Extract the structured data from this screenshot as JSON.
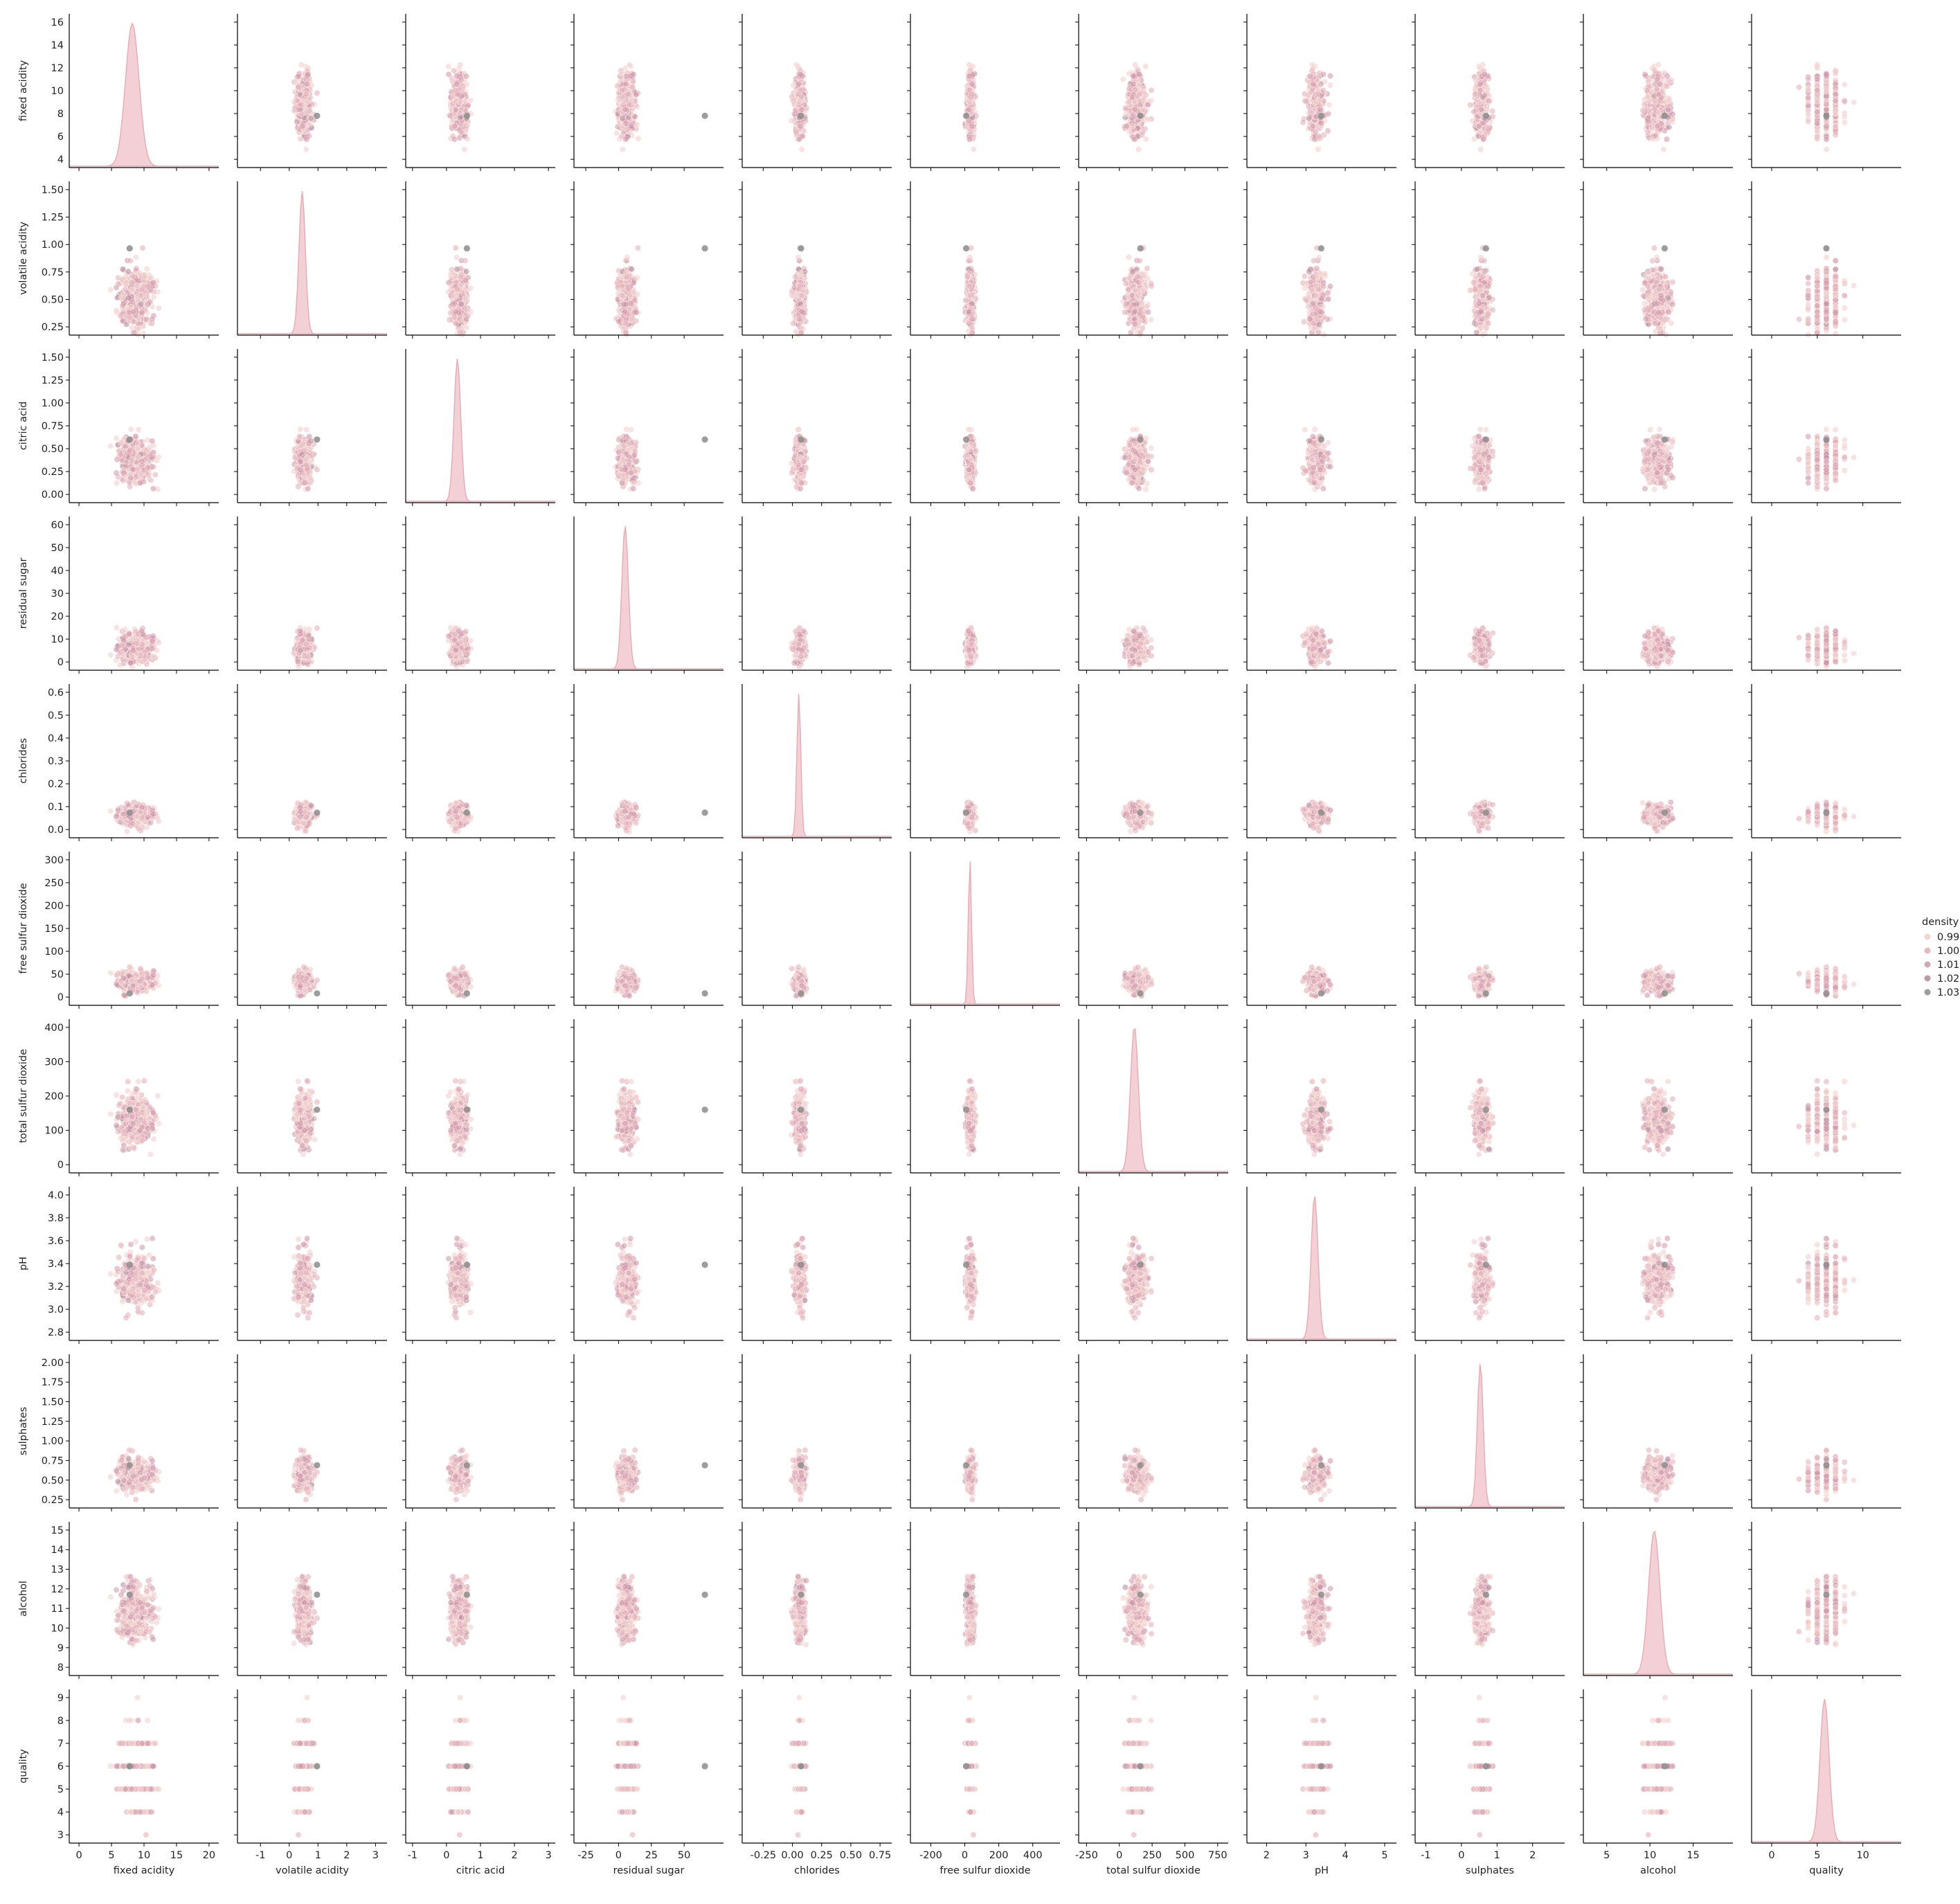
{
  "chart_data": {
    "type": "scatter",
    "subtype": "pairplot",
    "diagonal": "kde",
    "hue": "density",
    "variables": [
      {
        "name": "fixed acidity",
        "lim": [
          -1.5,
          21.5
        ],
        "ticks": [
          4,
          6,
          8,
          10,
          12,
          14,
          16
        ],
        "tick_labels": [
          "4",
          "6",
          "8",
          "10",
          "12",
          "14",
          "16"
        ],
        "xticks": [
          0,
          5,
          10,
          15,
          20
        ],
        "xtick_labels": [
          "0",
          "5",
          "10",
          "15",
          "20"
        ],
        "center": 8.2,
        "sd": 1.9
      },
      {
        "name": "volatile acidity",
        "lim": [
          -1.8,
          3.4
        ],
        "ticks": [
          0.25,
          0.5,
          0.75,
          1.0,
          1.25,
          1.5
        ],
        "tick_labels": [
          "0.25",
          "0.50",
          "0.75",
          "1.00",
          "1.25",
          "1.50"
        ],
        "xticks": [
          -1,
          0,
          1,
          2,
          3
        ],
        "xtick_labels": [
          "-1",
          "0",
          "1",
          "2",
          "3"
        ],
        "center": 0.45,
        "sd": 0.2
      },
      {
        "name": "citric acid",
        "lim": [
          -1.2,
          3.2
        ],
        "ticks": [
          0,
          0.25,
          0.5,
          0.75,
          1.0,
          1.25,
          1.5
        ],
        "tick_labels": [
          "0.00",
          "0.25",
          "0.50",
          "0.75",
          "1.00",
          "1.25",
          "1.50"
        ],
        "xticks": [
          -1,
          0,
          1,
          2,
          3
        ],
        "xtick_labels": [
          "-1",
          "0",
          "1",
          "2",
          "3"
        ],
        "center": 0.32,
        "sd": 0.18
      },
      {
        "name": "residual sugar",
        "lim": [
          -34,
          80
        ],
        "ticks": [
          0,
          10,
          20,
          30,
          40,
          50,
          60
        ],
        "tick_labels": [
          "0",
          "10",
          "20",
          "30",
          "40",
          "50",
          "60"
        ],
        "xticks": [
          -25,
          0,
          25,
          50
        ],
        "xtick_labels": [
          "-25",
          "0",
          "25",
          "50"
        ],
        "center": 5,
        "sd": 4.5
      },
      {
        "name": "chlorides",
        "lim": [
          -0.43,
          0.85
        ],
        "ticks": [
          0.0,
          0.1,
          0.2,
          0.3,
          0.4,
          0.5,
          0.6
        ],
        "tick_labels": [
          "0.0",
          "0.1",
          "0.2",
          "0.3",
          "0.4",
          "0.5",
          "0.6"
        ],
        "xticks": [
          -0.25,
          0,
          0.25,
          0.5,
          0.75
        ],
        "xtick_labels": [
          "-0.25",
          "0.00",
          "0.25",
          "0.50",
          "0.75"
        ],
        "center": 0.055,
        "sd": 0.03
      },
      {
        "name": "free sulfur dioxide",
        "lim": [
          -320,
          560
        ],
        "ticks": [
          0,
          50,
          100,
          150,
          200,
          250,
          300
        ],
        "tick_labels": [
          "0",
          "50",
          "100",
          "150",
          "200",
          "250",
          "300"
        ],
        "xticks": [
          -200,
          0,
          200,
          400
        ],
        "xtick_labels": [
          "-200",
          "0",
          "200",
          "400"
        ],
        "center": 30,
        "sd": 17
      },
      {
        "name": "total sulfur dioxide",
        "lim": [
          -310,
          830
        ],
        "ticks": [
          0,
          100,
          200,
          300,
          400
        ],
        "tick_labels": [
          "0",
          "100",
          "200",
          "300",
          "400"
        ],
        "xticks": [
          -250,
          0,
          250,
          500,
          750
        ],
        "xtick_labels": [
          "-250",
          "0",
          "250",
          "500",
          "750"
        ],
        "center": 115,
        "sd": 55
      },
      {
        "name": "pH",
        "lim": [
          1.5,
          5.3
        ],
        "ticks": [
          2.8,
          3.0,
          3.2,
          3.4,
          3.6,
          3.8,
          4.0
        ],
        "tick_labels": [
          "2.8",
          "3.0",
          "3.2",
          "3.4",
          "3.6",
          "3.8",
          "4.0"
        ],
        "xticks": [
          2,
          3,
          4,
          5
        ],
        "xtick_labels": [
          "2",
          "3",
          "4",
          "5"
        ],
        "center": 3.22,
        "sd": 0.16
      },
      {
        "name": "sulphates",
        "lim": [
          -1.3,
          2.9
        ],
        "ticks": [
          0.25,
          0.5,
          0.75,
          1.0,
          1.25,
          1.5,
          1.75,
          2.0
        ],
        "tick_labels": [
          "0.25",
          "0.50",
          "0.75",
          "1.00",
          "1.25",
          "1.50",
          "1.75",
          "2.00"
        ],
        "xticks": [
          -1,
          0,
          1,
          2
        ],
        "xtick_labels": [
          "-1",
          "0",
          "1",
          "2"
        ],
        "center": 0.53,
        "sd": 0.15
      },
      {
        "name": "alcohol",
        "lim": [
          2.3,
          19.6
        ],
        "ticks": [
          8,
          9,
          10,
          11,
          12,
          13,
          14,
          15
        ],
        "tick_labels": [
          "8",
          "9",
          "10",
          "11",
          "12",
          "13",
          "14",
          "15"
        ],
        "xticks": [
          5,
          10,
          15
        ],
        "xtick_labels": [
          "5",
          "10",
          "15"
        ],
        "center": 10.5,
        "sd": 1.2
      },
      {
        "name": "quality",
        "lim": [
          -2.2,
          14.2
        ],
        "ticks": [
          3,
          4,
          5,
          6,
          7,
          8,
          9
        ],
        "tick_labels": [
          "3",
          "4",
          "5",
          "6",
          "7",
          "8",
          "9"
        ],
        "xticks": [
          0,
          5,
          10
        ],
        "xtick_labels": [
          "0",
          "5",
          "10"
        ],
        "center": 5.8,
        "sd": 0.9
      }
    ],
    "legend": {
      "title": "density",
      "position": "right",
      "entries": [
        {
          "label": "0.99",
          "color": "#f0cdcb"
        },
        {
          "label": "1.00",
          "color": "#e2acb5"
        },
        {
          "label": "1.01",
          "color": "#cf94a7"
        },
        {
          "label": "1.02",
          "color": "#b1879a"
        },
        {
          "label": "1.03",
          "color": "#8c8c8c"
        }
      ]
    },
    "outlier": {
      "fixed acidity": 7.8,
      "volatile acidity": 0.965,
      "citric acid": 0.6,
      "residual sugar": 65.8,
      "chlorides": 0.074,
      "free sulfur dioxide": 8,
      "total sulfur dioxide": 160,
      "pH": 3.39,
      "sulphates": 0.69,
      "alcohol": 11.7,
      "quality": 6
    },
    "point_alpha": 0.55,
    "diagonal_color": "#e8aab2"
  }
}
